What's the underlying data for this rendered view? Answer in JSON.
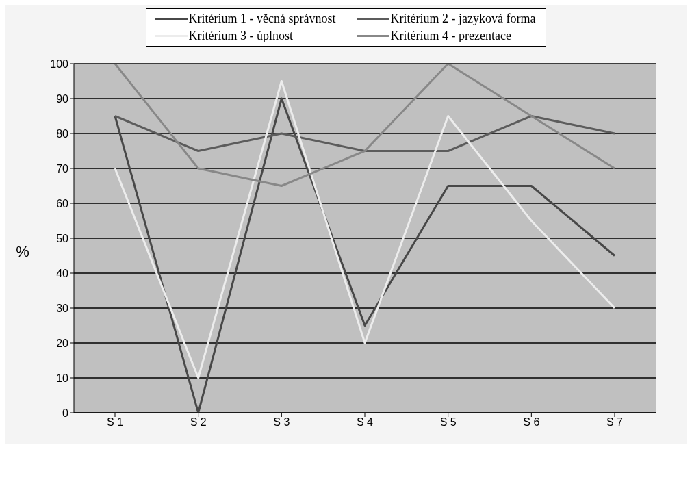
{
  "chart_data": {
    "type": "line",
    "ylabel": "%",
    "categories": [
      "S 1",
      "S 2",
      "S 3",
      "S 4",
      "S 5",
      "S 6",
      "S 7"
    ],
    "series": [
      {
        "name": "Kritérium 1 - věcná správnost",
        "color": "#484848",
        "values": [
          85,
          0,
          90,
          25,
          65,
          65,
          45
        ]
      },
      {
        "name": "Kritérium 2 - jazyková forma",
        "color": "#5c5c5c",
        "values": [
          85,
          75,
          80,
          75,
          75,
          85,
          80
        ]
      },
      {
        "name": "Kritérium 3 - úplnost",
        "color": "#ececec",
        "values": [
          70,
          10,
          95,
          20,
          85,
          55,
          30
        ]
      },
      {
        "name": "Kritérium 4 - prezentace",
        "color": "#888888",
        "values": [
          100,
          70,
          65,
          75,
          100,
          85,
          70
        ]
      }
    ],
    "ylim": [
      0,
      100
    ],
    "yticks": [
      0,
      10,
      20,
      30,
      40,
      50,
      60,
      70,
      80,
      90,
      100
    ],
    "grid": "y",
    "legend": "top",
    "marker": "none",
    "line_style": "solid"
  }
}
